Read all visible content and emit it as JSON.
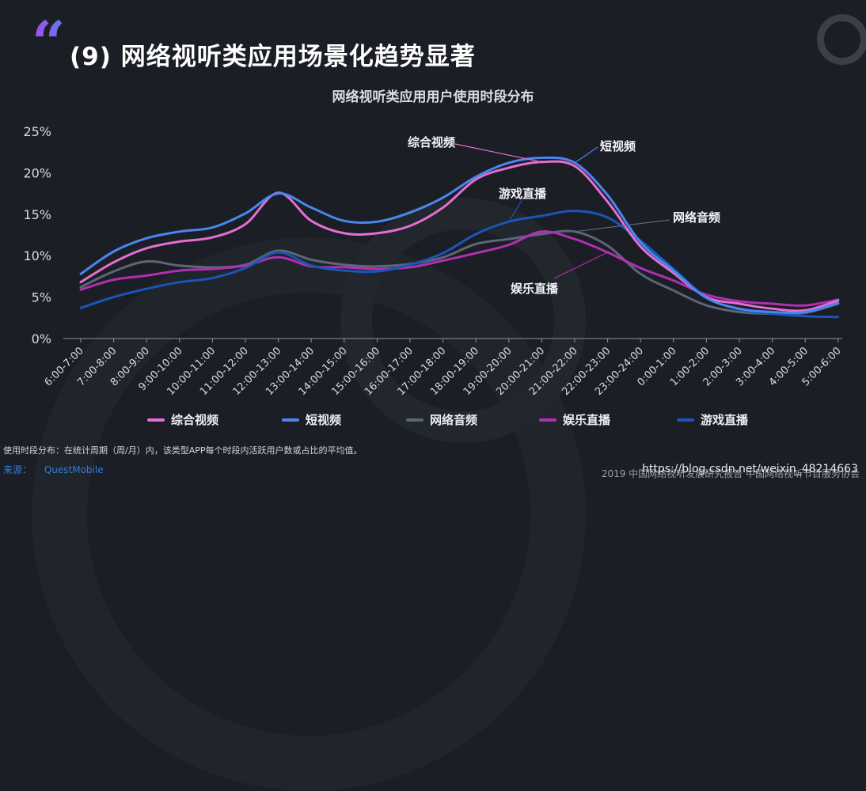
{
  "header": {
    "quote_mark": "“",
    "title": "(9) 网络视听类应用场景化趋势显著"
  },
  "chart_data": {
    "type": "line",
    "title": "网络视听类应用用户使用时段分布",
    "xlabel": "",
    "ylabel": "",
    "ylim": [
      0,
      25
    ],
    "yticks": [
      "0%",
      "5%",
      "10%",
      "15%",
      "20%",
      "25%"
    ],
    "grid": false,
    "legend_position": "bottom",
    "categories": [
      "6:00-7:00",
      "7:00-8:00",
      "8:00-9:00",
      "9:00-10:00",
      "10:00-11:00",
      "11:00-12:00",
      "12:00-13:00",
      "13:00-14:00",
      "14:00-15:00",
      "15:00-16:00",
      "16:00-17:00",
      "17:00-18:00",
      "18:00-19:00",
      "19:00-20:00",
      "20:00-21:00",
      "21:00-22:00",
      "22:00-23:00",
      "23:00-24:00",
      "0:00-1:00",
      "1:00-2:00",
      "2:00-3:00",
      "3:00-4:00",
      "4:00-5:00",
      "5:00-6:00"
    ],
    "series": [
      {
        "name": "综合视频",
        "color": "#e46ed2",
        "values": [
          6.8,
          9.2,
          10.9,
          11.7,
          12.2,
          13.8,
          17.6,
          14.2,
          12.7,
          12.7,
          13.6,
          15.8,
          19.2,
          20.6,
          21.3,
          20.8,
          16.5,
          11.1,
          7.9,
          5.0,
          4.2,
          3.6,
          3.4,
          4.6
        ]
      },
      {
        "name": "短视频",
        "color": "#4a86f0",
        "values": [
          7.8,
          10.5,
          12.1,
          12.9,
          13.4,
          15.1,
          17.5,
          15.8,
          14.2,
          14.1,
          15.2,
          17.0,
          19.5,
          21.2,
          21.8,
          21.2,
          17.3,
          11.6,
          8.2,
          4.9,
          3.6,
          3.2,
          3.2,
          4.3
        ]
      },
      {
        "name": "网络音频",
        "color": "#5c6678",
        "values": [
          6.2,
          8.1,
          9.3,
          8.8,
          8.6,
          8.9,
          10.6,
          9.5,
          8.9,
          8.7,
          9.0,
          9.8,
          11.4,
          12.0,
          12.6,
          12.9,
          11.2,
          7.8,
          5.8,
          4.0,
          3.2,
          3.0,
          3.1,
          4.2
        ]
      },
      {
        "name": "娱乐直播",
        "color": "#b12fb0",
        "values": [
          5.9,
          7.1,
          7.6,
          8.2,
          8.4,
          8.8,
          9.8,
          8.7,
          8.6,
          8.4,
          8.6,
          9.4,
          10.3,
          11.3,
          12.9,
          12.0,
          10.4,
          8.5,
          7.0,
          5.3,
          4.5,
          4.2,
          4.0,
          4.7
        ]
      },
      {
        "name": "游戏直播",
        "color": "#1a55b8",
        "values": [
          3.7,
          5.0,
          6.0,
          6.8,
          7.3,
          8.5,
          10.4,
          8.8,
          8.2,
          8.1,
          8.9,
          10.3,
          12.6,
          14.1,
          14.8,
          15.4,
          14.6,
          11.8,
          8.4,
          5.0,
          3.5,
          3.0,
          2.7,
          2.6
        ]
      }
    ],
    "annotations": [
      {
        "series": "综合视频",
        "text": "综合视频"
      },
      {
        "series": "短视频",
        "text": "短视频"
      },
      {
        "series": "游戏直播",
        "text": "游戏直播"
      },
      {
        "series": "网络音频",
        "text": "网络音频"
      },
      {
        "series": "娱乐直播",
        "text": "娱乐直播"
      }
    ]
  },
  "footer": {
    "note": "使用时段分布：在统计周期（周/月）内，该类型APP每个时段内活跃用户数或占比的平均值。",
    "source_label": "来源：",
    "source_name": "QuestMobile",
    "credit": "2019 中国网络视听发展研究报告  中国网络视听节目服务协会",
    "watermark": "https://blog.csdn.net/weixin_48214663"
  }
}
